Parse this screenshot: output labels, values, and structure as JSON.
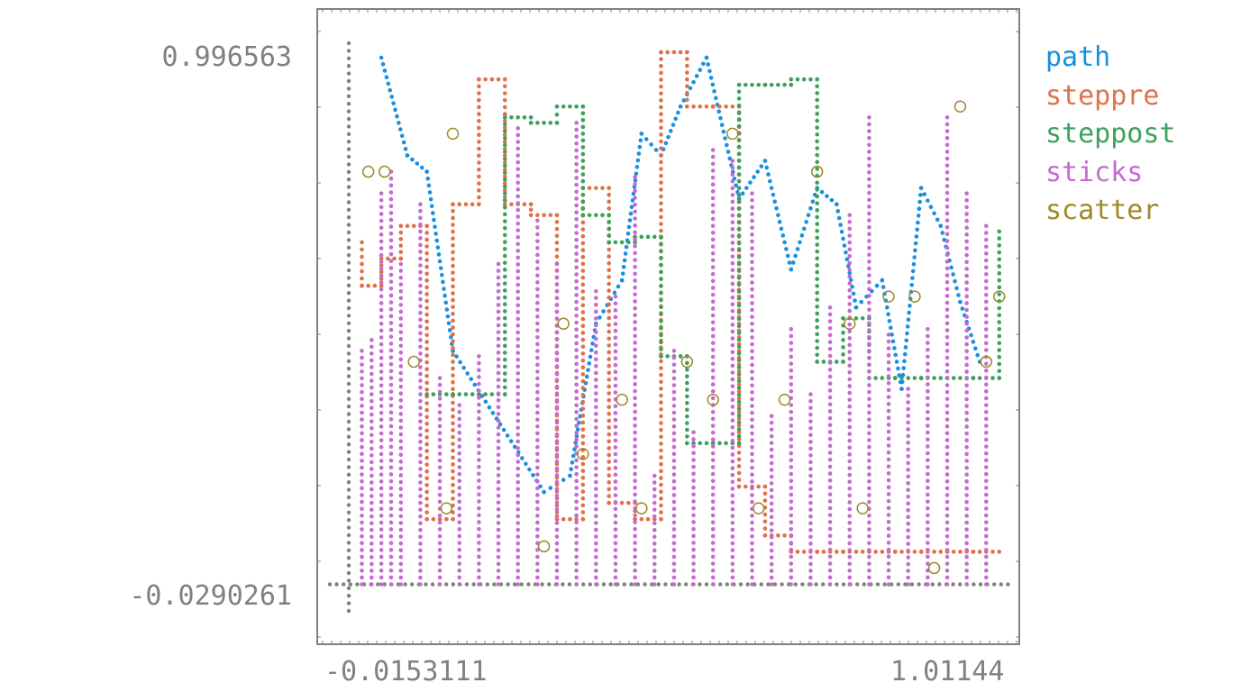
{
  "chart_data": {
    "type": "scatter",
    "title": "",
    "xlabel": "",
    "ylabel": "",
    "xlim": [
      -0.0153111,
      1.01144
    ],
    "ylim": [
      -0.0290261,
      0.996563
    ],
    "x_ticks": [
      "-0.0153111",
      "1.01144"
    ],
    "y_ticks": [
      "0.996563",
      "-0.0290261"
    ],
    "grid": false,
    "legend_position": "right",
    "series": [
      {
        "name": "path",
        "style": "path",
        "color": "#1a8fe0",
        "x": [
          0.05,
          0.09,
          0.12,
          0.16,
          0.3,
          0.34,
          0.38,
          0.42,
          0.45,
          0.48,
          0.51,
          0.55,
          0.6,
          0.64,
          0.68,
          0.72,
          0.75,
          0.78,
          0.82,
          0.85,
          0.88,
          0.91,
          0.94,
          0.97
        ],
        "y": [
          0.97,
          0.79,
          0.76,
          0.43,
          0.17,
          0.2,
          0.48,
          0.56,
          0.83,
          0.79,
          0.88,
          0.97,
          0.71,
          0.78,
          0.58,
          0.73,
          0.7,
          0.51,
          0.56,
          0.36,
          0.73,
          0.66,
          0.52,
          0.41
        ]
      },
      {
        "name": "steppre",
        "style": "step-pre",
        "color": "#e0704a",
        "x": [
          0.02,
          0.05,
          0.08,
          0.12,
          0.16,
          0.2,
          0.24,
          0.28,
          0.32,
          0.36,
          0.4,
          0.44,
          0.48,
          0.52,
          0.56,
          0.6,
          0.64,
          0.68,
          0.72,
          0.76,
          0.8,
          0.84,
          0.88,
          0.92,
          0.96,
          1.0
        ],
        "y": [
          0.63,
          0.55,
          0.6,
          0.66,
          0.12,
          0.7,
          0.93,
          0.7,
          0.68,
          0.12,
          0.73,
          0.15,
          0.12,
          0.98,
          0.88,
          0.88,
          0.18,
          0.09,
          0.06,
          0.06,
          0.06,
          0.06,
          0.06,
          0.06,
          0.06,
          0.06
        ]
      },
      {
        "name": "steppost",
        "style": "step-post",
        "color": "#3fa05a",
        "x": [
          0.12,
          0.16,
          0.2,
          0.24,
          0.28,
          0.32,
          0.36,
          0.4,
          0.44,
          0.48,
          0.52,
          0.56,
          0.6,
          0.64,
          0.68,
          0.72,
          0.76,
          0.8,
          0.84,
          0.88,
          0.92,
          0.96,
          1.0
        ],
        "y": [
          0.35,
          0.35,
          0.35,
          0.86,
          0.85,
          0.88,
          0.68,
          0.63,
          0.64,
          0.42,
          0.26,
          0.26,
          0.92,
          0.92,
          0.93,
          0.41,
          0.49,
          0.38,
          0.38,
          0.38,
          0.38,
          0.38,
          0.65
        ]
      },
      {
        "name": "sticks",
        "style": "sticks",
        "color": "#c46bd0",
        "x": [
          0.02,
          0.035,
          0.05,
          0.065,
          0.08,
          0.11,
          0.14,
          0.17,
          0.2,
          0.23,
          0.26,
          0.29,
          0.32,
          0.35,
          0.38,
          0.41,
          0.44,
          0.47,
          0.5,
          0.53,
          0.56,
          0.59,
          0.62,
          0.65,
          0.68,
          0.71,
          0.74,
          0.77,
          0.8,
          0.83,
          0.86,
          0.89,
          0.92,
          0.95,
          0.98
        ],
        "y": [
          0.43,
          0.45,
          0.72,
          0.76,
          0.59,
          0.7,
          0.38,
          0.33,
          0.42,
          0.59,
          0.84,
          0.67,
          0.59,
          0.85,
          0.54,
          0.53,
          0.75,
          0.2,
          0.43,
          0.28,
          0.8,
          0.78,
          0.72,
          0.31,
          0.47,
          0.35,
          0.51,
          0.68,
          0.86,
          0.46,
          0.36,
          0.47,
          0.86,
          0.72,
          0.66
        ]
      },
      {
        "name": "scatter",
        "style": "scatter",
        "color": "#a0892a",
        "x": [
          0.03,
          0.055,
          0.1,
          0.15,
          0.16,
          0.3,
          0.33,
          0.36,
          0.42,
          0.45,
          0.52,
          0.56,
          0.59,
          0.63,
          0.67,
          0.72,
          0.77,
          0.79,
          0.83,
          0.87,
          0.9,
          0.94,
          0.98,
          1.0
        ],
        "y": [
          0.76,
          0.76,
          0.41,
          0.14,
          0.83,
          0.07,
          0.48,
          0.24,
          0.34,
          0.14,
          0.41,
          0.34,
          0.83,
          0.14,
          0.34,
          0.76,
          0.48,
          0.14,
          0.53,
          0.53,
          0.03,
          0.88,
          0.41,
          0.53
        ]
      }
    ]
  },
  "colors": {
    "frame": "#808080",
    "axis": "#808080"
  }
}
